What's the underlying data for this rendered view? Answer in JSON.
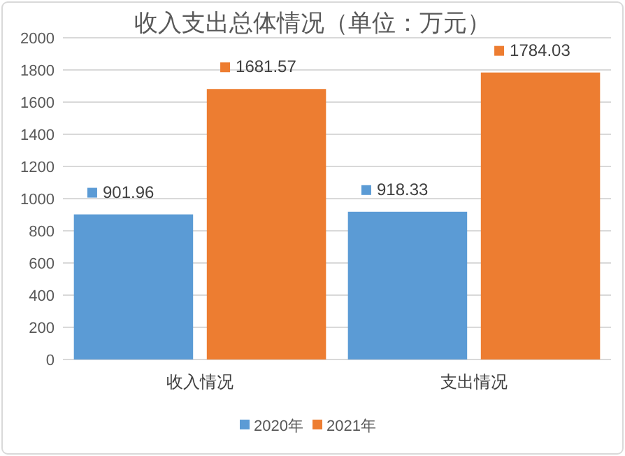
{
  "chart_data": {
    "type": "bar",
    "title": "收入支出总体情况（单位：万元）",
    "categories": [
      "收入情况",
      "支出情况"
    ],
    "series": [
      {
        "name": "2020年",
        "color": "#5b9bd5",
        "values": [
          901.96,
          918.33
        ]
      },
      {
        "name": "2021年",
        "color": "#ed7d31",
        "values": [
          1681.57,
          1784.03
        ]
      }
    ],
    "ylim": [
      0,
      2000
    ],
    "yticks": [
      0,
      200,
      400,
      600,
      800,
      1000,
      1200,
      1400,
      1600,
      1800,
      2000
    ],
    "grid": "y",
    "legend": "bottom",
    "data_labels": true
  }
}
